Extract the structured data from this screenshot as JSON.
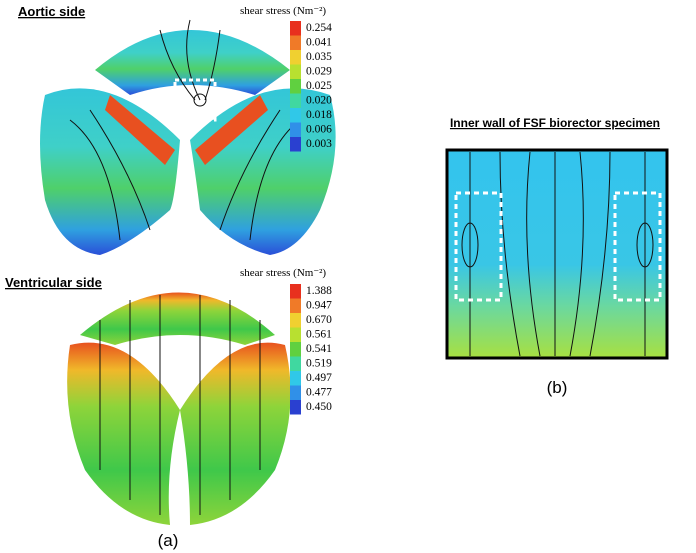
{
  "panel_a": {
    "aortic": {
      "label": "Aortic side",
      "colorbar_title": "shear stress (Nm⁻²)",
      "colorbar_labels": [
        "0.254",
        "0.041",
        "0.035",
        "0.029",
        "0.025",
        "0.020",
        "0.018",
        "0.006",
        "0.003"
      ]
    },
    "ventricular": {
      "label": "Ventricular side",
      "colorbar_title": "shear stress (Nm⁻²)",
      "colorbar_labels": [
        "1.388",
        "0.947",
        "0.670",
        "0.561",
        "0.541",
        "0.519",
        "0.497",
        "0.477",
        "0.450"
      ]
    },
    "caption": "(a)"
  },
  "panel_b": {
    "label": "Inner wall of FSF biorector specimen",
    "caption": "(b)"
  }
}
